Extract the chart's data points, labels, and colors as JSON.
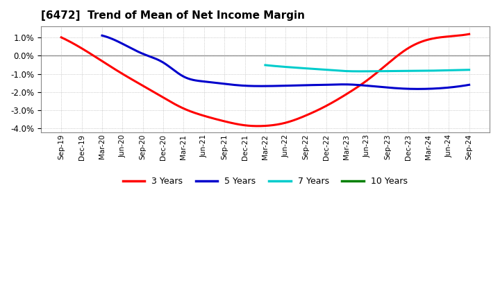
{
  "title": "[6472]  Trend of Mean of Net Income Margin",
  "background_color": "#ffffff",
  "plot_background_color": "#ffffff",
  "grid_color": "#aaaaaa",
  "ylim": [
    -4.2,
    1.6
  ],
  "yticks": [
    -4.0,
    -3.0,
    -2.0,
    -1.0,
    0.0,
    1.0
  ],
  "x_labels": [
    "Sep-19",
    "Dec-19",
    "Mar-20",
    "Jun-20",
    "Sep-20",
    "Dec-20",
    "Mar-21",
    "Jun-21",
    "Sep-21",
    "Dec-21",
    "Mar-22",
    "Jun-22",
    "Sep-22",
    "Dec-22",
    "Mar-23",
    "Jun-23",
    "Sep-23",
    "Dec-23",
    "Mar-24",
    "Jun-24",
    "Sep-24"
  ],
  "series": {
    "3 Years": {
      "color": "#ff0000",
      "linewidth": 2.2,
      "values": [
        1.0,
        0.4,
        -0.3,
        -1.0,
        -1.65,
        -2.3,
        -2.9,
        -3.3,
        -3.6,
        -3.82,
        -3.85,
        -3.68,
        -3.28,
        -2.75,
        -2.1,
        -1.35,
        -0.45,
        0.4,
        0.88,
        1.05,
        1.18
      ]
    },
    "5 Years": {
      "color": "#0000cc",
      "linewidth": 2.2,
      "values": [
        null,
        null,
        1.1,
        0.65,
        0.1,
        -0.38,
        -1.15,
        -1.42,
        -1.55,
        -1.65,
        -1.67,
        -1.65,
        -1.62,
        -1.6,
        -1.58,
        -1.65,
        -1.75,
        -1.82,
        -1.82,
        -1.75,
        -1.6
      ]
    },
    "7 Years": {
      "color": "#00cccc",
      "linewidth": 2.2,
      "values": [
        null,
        null,
        null,
        null,
        null,
        null,
        null,
        null,
        null,
        null,
        -0.52,
        -0.62,
        -0.7,
        -0.78,
        -0.85,
        -0.86,
        -0.85,
        -0.84,
        -0.83,
        -0.8,
        -0.78
      ]
    },
    "10 Years": {
      "color": "#008000",
      "linewidth": 2.2,
      "values": [
        null,
        null,
        null,
        null,
        null,
        null,
        null,
        null,
        null,
        null,
        null,
        null,
        null,
        null,
        null,
        null,
        null,
        null,
        null,
        null,
        null
      ]
    }
  },
  "legend_items": [
    "3 Years",
    "5 Years",
    "7 Years",
    "10 Years"
  ],
  "legend_colors": [
    "#ff0000",
    "#0000cc",
    "#00cccc",
    "#008000"
  ]
}
